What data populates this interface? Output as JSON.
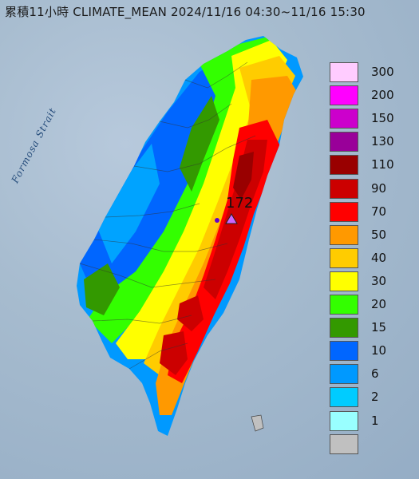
{
  "title": "累積11小時 CLIMATE_MEAN 2024/11/16 04:30~11/16 15:30",
  "strait_label": "Formosa Strait",
  "max_value_label": "172",
  "legend": [
    {
      "label": "300",
      "color": "#ffccff"
    },
    {
      "label": "200",
      "color": "#ff00ff"
    },
    {
      "label": "150",
      "color": "#cc00cc"
    },
    {
      "label": "130",
      "color": "#990099"
    },
    {
      "label": "110",
      "color": "#990000"
    },
    {
      "label": "90",
      "color": "#cc0000"
    },
    {
      "label": "70",
      "color": "#ff0000"
    },
    {
      "label": "50",
      "color": "#ff9900"
    },
    {
      "label": "40",
      "color": "#ffcc00"
    },
    {
      "label": "30",
      "color": "#ffff00"
    },
    {
      "label": "20",
      "color": "#33ff00"
    },
    {
      "label": "15",
      "color": "#339900"
    },
    {
      "label": "10",
      "color": "#0066ff"
    },
    {
      "label": "6",
      "color": "#0099ff"
    },
    {
      "label": "2",
      "color": "#00ccff"
    },
    {
      "label": "1",
      "color": "#99ffff"
    },
    {
      "label": "",
      "color": "#c0c0c0"
    }
  ]
}
